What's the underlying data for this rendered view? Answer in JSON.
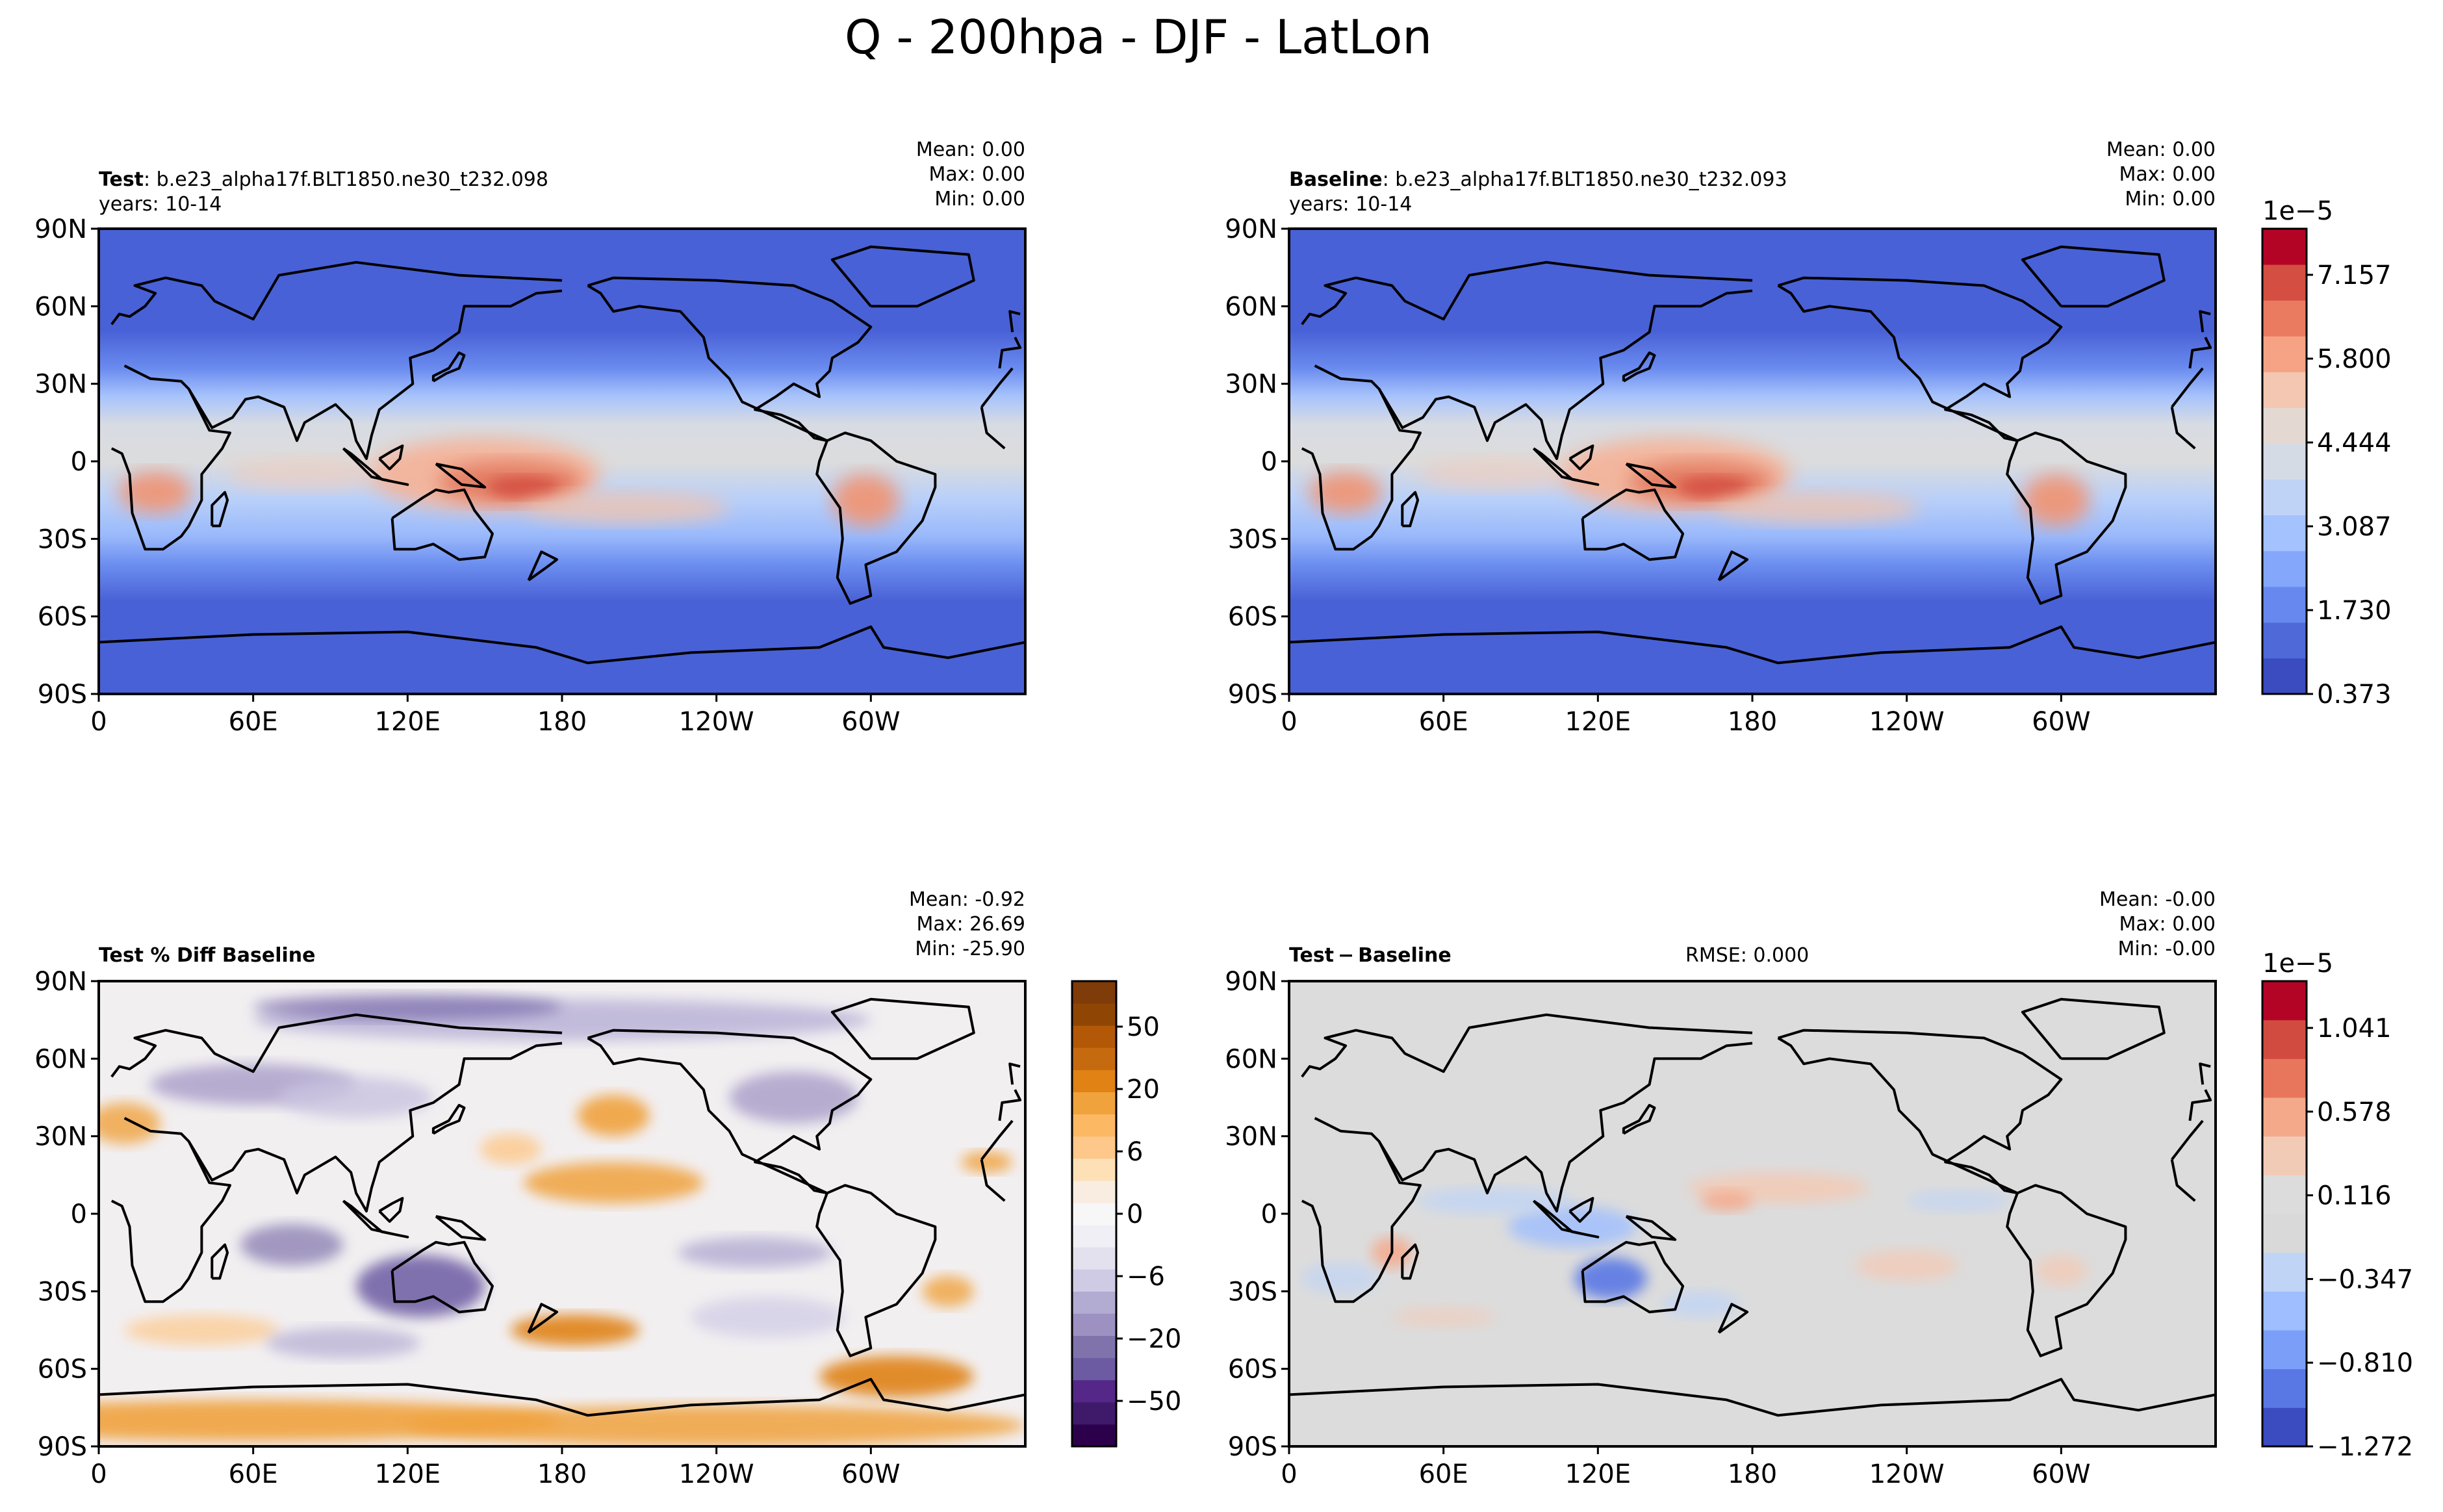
{
  "figure_title": "Q - 200hpa - DJF - LatLon",
  "lat_ticks": [
    "90N",
    "60N",
    "30N",
    "0",
    "30S",
    "60S",
    "90S"
  ],
  "lon_ticks": [
    "0",
    "60E",
    "120E",
    "180",
    "120W",
    "60W"
  ],
  "panels": [
    {
      "key": "test",
      "label_bold": "Test",
      "label_rest": ": b.e23_alpha17f.BLT1850.ne30_t232.098",
      "years": "years: 10-14",
      "stats": [
        "Mean:  0.00",
        "Max:  0.00",
        "Min:  0.00"
      ],
      "colormap": "coolwarm"
    },
    {
      "key": "baseline",
      "label_bold": "Baseline",
      "label_rest": ": b.e23_alpha17f.BLT1850.ne30_t232.093",
      "years": "years: 10-14",
      "stats": [
        "Mean:  0.00",
        "Max:  0.00",
        "Min:  0.00"
      ],
      "colormap": "coolwarm"
    },
    {
      "key": "pctdiff",
      "label_bold": "Test % Diff Baseline",
      "label_rest": "",
      "years": "",
      "stats": [
        "Mean: -0.92",
        "Max: 26.69",
        "Min: -25.90"
      ],
      "colormap": "PuOr_r"
    },
    {
      "key": "diff",
      "label_bold": "Test − Baseline",
      "label_rest": "",
      "years": "",
      "rmse": "RMSE: 0.000",
      "stats": [
        "Mean: -0.00",
        "Max:  0.00",
        "Min: -0.00"
      ],
      "colormap": "coolwarm"
    }
  ],
  "colorbars": {
    "main": {
      "exponent": "1e−5",
      "tick_labels": [
        "0.373",
        "1.730",
        "3.087",
        "4.444",
        "5.800",
        "7.157"
      ],
      "colors": [
        "#3b4cc0",
        "#4f69d9",
        "#6788ee",
        "#84a7fc",
        "#a3c2fe",
        "#bfd3f6",
        "#d5dbe5",
        "#e4d9d2",
        "#f3c7b1",
        "#f6a385",
        "#ea7b60",
        "#d44e41",
        "#b40426"
      ]
    },
    "pctdiff": {
      "tick_labels": [
        "50",
        "20",
        "6",
        "0",
        "−6",
        "−20",
        "−50"
      ],
      "colors": [
        "#2d004b",
        "#3f1a6b",
        "#542788",
        "#6c5ba3",
        "#8073ac",
        "#9d91c2",
        "#b2abd2",
        "#cfcbe5",
        "#e3e1ee",
        "#f0eff5",
        "#f7f7f7",
        "#f9ece0",
        "#fde0b6",
        "#fdc88a",
        "#fdb863",
        "#f0a23c",
        "#e08214",
        "#c66a0f",
        "#b35806",
        "#8f4605",
        "#7f3b08"
      ]
    },
    "diff": {
      "exponent": "1e−5",
      "tick_labels": [
        "1.041",
        "0.578",
        "0.116",
        "−0.347",
        "−0.810",
        "−1.272"
      ],
      "colors": [
        "#3b4cc0",
        "#5a78e4",
        "#7b9ff9",
        "#9ebeff",
        "#c0d4f5",
        "#d9d9d9",
        "#dddcdc",
        "#f2cbb7",
        "#f5a98b",
        "#e8765c",
        "#d24b40",
        "#b40426"
      ]
    }
  },
  "chart_data": [
    {
      "type": "heatmap",
      "title": "Test : b.e23_alpha17f.BLT1850.ne30_t232.098",
      "subtitle": "years: 10-14",
      "variable": "Q",
      "units_exponent": "1e−5",
      "xlim": [
        0,
        360
      ],
      "ylim": [
        -90,
        90
      ],
      "x_ticks": [
        "0",
        "60E",
        "120E",
        "180",
        "120W",
        "60W"
      ],
      "y_ticks": [
        "90N",
        "60N",
        "30N",
        "0",
        "30S",
        "60S",
        "90S"
      ],
      "colorbar_ticks": [
        0.373,
        1.73,
        3.087,
        4.444,
        5.8,
        7.157
      ],
      "stats": {
        "mean": 0.0,
        "max": 0.0,
        "min": 0.0
      }
    },
    {
      "type": "heatmap",
      "title": "Baseline : b.e23_alpha17f.BLT1850.ne30_t232.093",
      "subtitle": "years: 10-14",
      "variable": "Q",
      "units_exponent": "1e−5",
      "xlim": [
        0,
        360
      ],
      "ylim": [
        -90,
        90
      ],
      "x_ticks": [
        "0",
        "60E",
        "120E",
        "180",
        "120W",
        "60W"
      ],
      "y_ticks": [
        "90N",
        "60N",
        "30N",
        "0",
        "30S",
        "60S",
        "90S"
      ],
      "colorbar_ticks": [
        0.373,
        1.73,
        3.087,
        4.444,
        5.8,
        7.157
      ],
      "stats": {
        "mean": 0.0,
        "max": 0.0,
        "min": 0.0
      }
    },
    {
      "type": "heatmap",
      "title": "Test % Diff Baseline",
      "xlim": [
        0,
        360
      ],
      "ylim": [
        -90,
        90
      ],
      "x_ticks": [
        "0",
        "60E",
        "120E",
        "180",
        "120W",
        "60W"
      ],
      "y_ticks": [
        "90N",
        "60N",
        "30N",
        "0",
        "30S",
        "60S",
        "90S"
      ],
      "colorbar_ticks": [
        50,
        20,
        6,
        0,
        -6,
        -20,
        -50
      ],
      "stats": {
        "mean": -0.92,
        "max": 26.69,
        "min": -25.9
      }
    },
    {
      "type": "heatmap",
      "title": "Test − Baseline",
      "units_exponent": "1e−5",
      "xlim": [
        0,
        360
      ],
      "ylim": [
        -90,
        90
      ],
      "x_ticks": [
        "0",
        "60E",
        "120E",
        "180",
        "120W",
        "60W"
      ],
      "y_ticks": [
        "90N",
        "60N",
        "30N",
        "0",
        "30S",
        "60S",
        "90S"
      ],
      "colorbar_ticks": [
        1.041,
        0.578,
        0.116,
        -0.347,
        -0.81,
        -1.272
      ],
      "stats": {
        "rmse": 0.0,
        "mean": -0.0,
        "max": 0.0,
        "min": -0.0
      }
    }
  ]
}
